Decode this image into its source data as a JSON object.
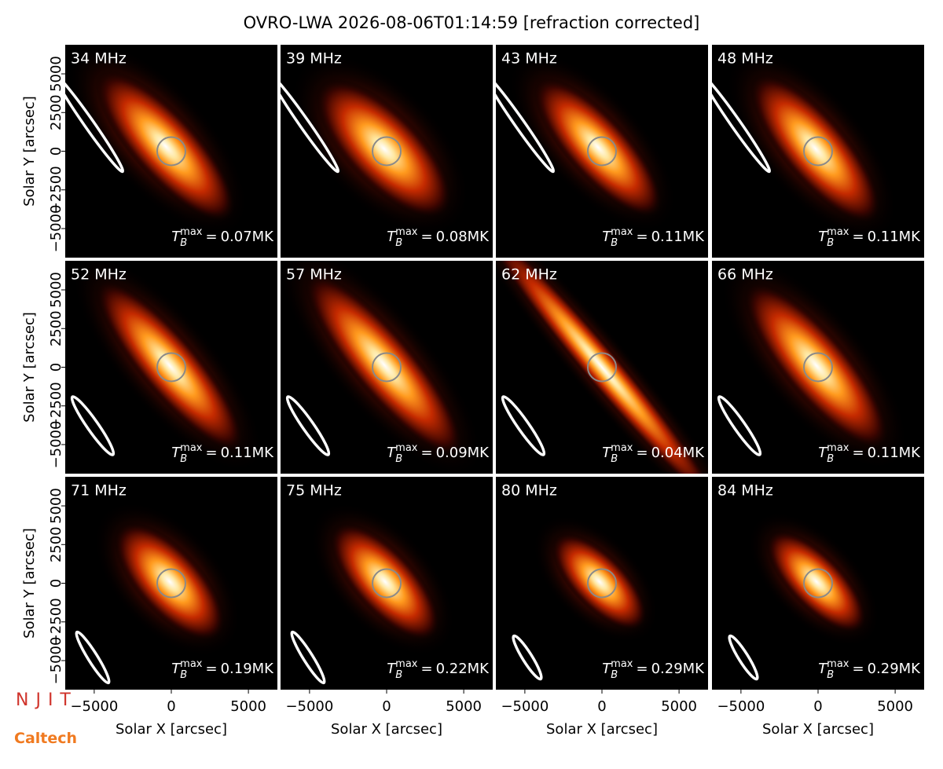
{
  "chart_data": {
    "type": "image-grid",
    "title": "OVRO-LWA 2026-08-06T01:14:59 [refraction corrected]",
    "xlabel": "Solar X [arcsec]",
    "ylabel": "Solar Y [arcsec]",
    "xlim": [
      -6880,
      6880
    ],
    "ylim": [
      -6880,
      6880
    ],
    "xticks": [
      {
        "value": -5000,
        "label": "−5000"
      },
      0,
      5000
    ],
    "yticks": [
      {
        "value": -5000,
        "label": "−5000"
      },
      {
        "value": -2500,
        "label": "−2500"
      },
      0,
      2500,
      5000
    ],
    "tmax_symbol": {
      "base": "T",
      "sub": "B",
      "sup": "max",
      "eq": "="
    },
    "panels": [
      {
        "frequency": "34 MHz",
        "tmax": 0.07,
        "tmax_label": "0.07MK"
      },
      {
        "frequency": "39 MHz",
        "tmax": 0.08,
        "tmax_label": "0.08MK"
      },
      {
        "frequency": "43 MHz",
        "tmax": 0.11,
        "tmax_label": "0.11MK"
      },
      {
        "frequency": "48 MHz",
        "tmax": 0.11,
        "tmax_label": "0.11MK"
      },
      {
        "frequency": "52 MHz",
        "tmax": 0.11,
        "tmax_label": "0.11MK"
      },
      {
        "frequency": "57 MHz",
        "tmax": 0.09,
        "tmax_label": "0.09MK"
      },
      {
        "frequency": "62 MHz",
        "tmax": 0.04,
        "tmax_label": "0.04MK"
      },
      {
        "frequency": "66 MHz",
        "tmax": 0.11,
        "tmax_label": "0.11MK"
      },
      {
        "frequency": "71 MHz",
        "tmax": 0.19,
        "tmax_label": "0.19MK"
      },
      {
        "frequency": "75 MHz",
        "tmax": 0.22,
        "tmax_label": "0.22MK"
      },
      {
        "frequency": "80 MHz",
        "tmax": 0.29,
        "tmax_label": "0.29MK"
      },
      {
        "frequency": "84 MHz",
        "tmax": 0.29,
        "tmax_label": "0.29MK"
      }
    ],
    "logos": [
      "NJIT",
      "Caltech"
    ]
  }
}
